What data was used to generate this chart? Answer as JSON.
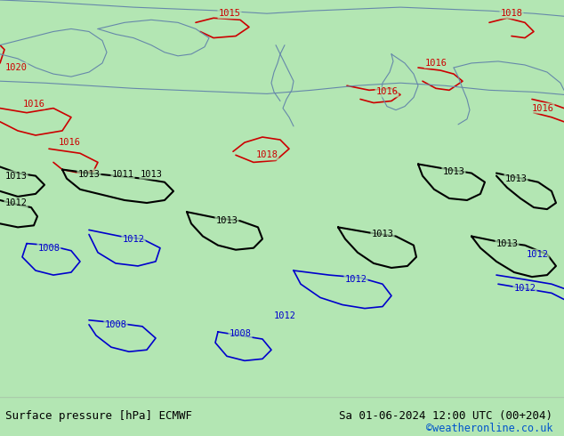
{
  "title_left": "Surface pressure [hPa] ECMWF",
  "title_right": "Sa 01-06-2024 12:00 UTC (00+204)",
  "credit": "©weatheronline.co.uk",
  "bg_color": "#b3e6b3",
  "map_bg": "#b3e6b3",
  "bottom_bar_color": "#d4f0b0",
  "fig_width": 6.34,
  "fig_height": 4.9,
  "dpi": 100,
  "title_fontsize": 9,
  "credit_fontsize": 8.5
}
